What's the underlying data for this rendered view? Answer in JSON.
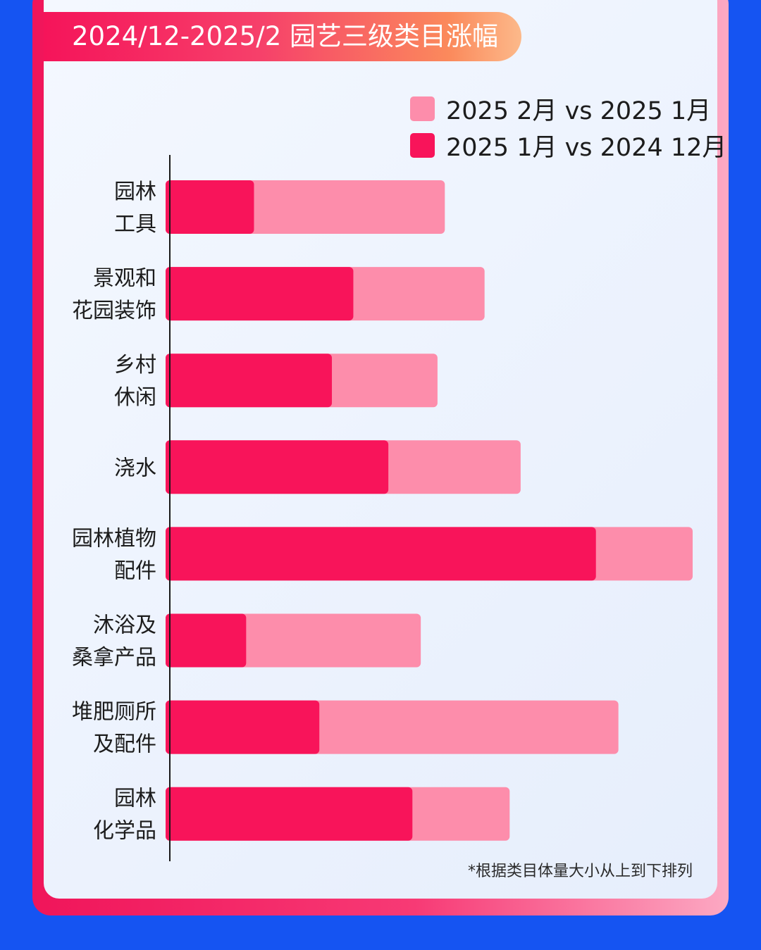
{
  "title": "2024/12-2025/2 园艺三级类目涨幅",
  "footnote": "*根据类目体量大小从上到下排列",
  "colors": {
    "series_feb": "#fd8dab",
    "series_jan": "#f8145a"
  },
  "chart_data": {
    "type": "bar",
    "orientation": "horizontal",
    "stacking": "overlay",
    "title": "2024/12-2025/2 园艺三级类目涨幅",
    "xlabel": "",
    "ylabel": "",
    "grid": false,
    "legend_position": "top-right",
    "xlim": [
      0,
      100
    ],
    "categories": [
      [
        "园林",
        "工具"
      ],
      [
        "景观和",
        "花园装饰"
      ],
      [
        "乡村",
        "休闲"
      ],
      [
        "浇水"
      ],
      [
        "园林植物",
        "配件"
      ],
      [
        "沐浴及",
        "桑拿产品"
      ],
      [
        "堆肥厕所",
        "及配件"
      ],
      [
        "园林",
        "化学品"
      ]
    ],
    "series": [
      {
        "name": "2025 2月 vs 2025 1月",
        "color": "#fd8dab",
        "values": [
          52.6,
          60.2,
          51.2,
          67.1,
          100,
          48.0,
          85.8,
          65.0
        ]
      },
      {
        "name": "2025 1月 vs 2024 12月",
        "color": "#f8145a",
        "values": [
          16.1,
          35.1,
          31.0,
          41.8,
          81.5,
          14.6,
          28.6,
          46.4
        ]
      }
    ]
  }
}
